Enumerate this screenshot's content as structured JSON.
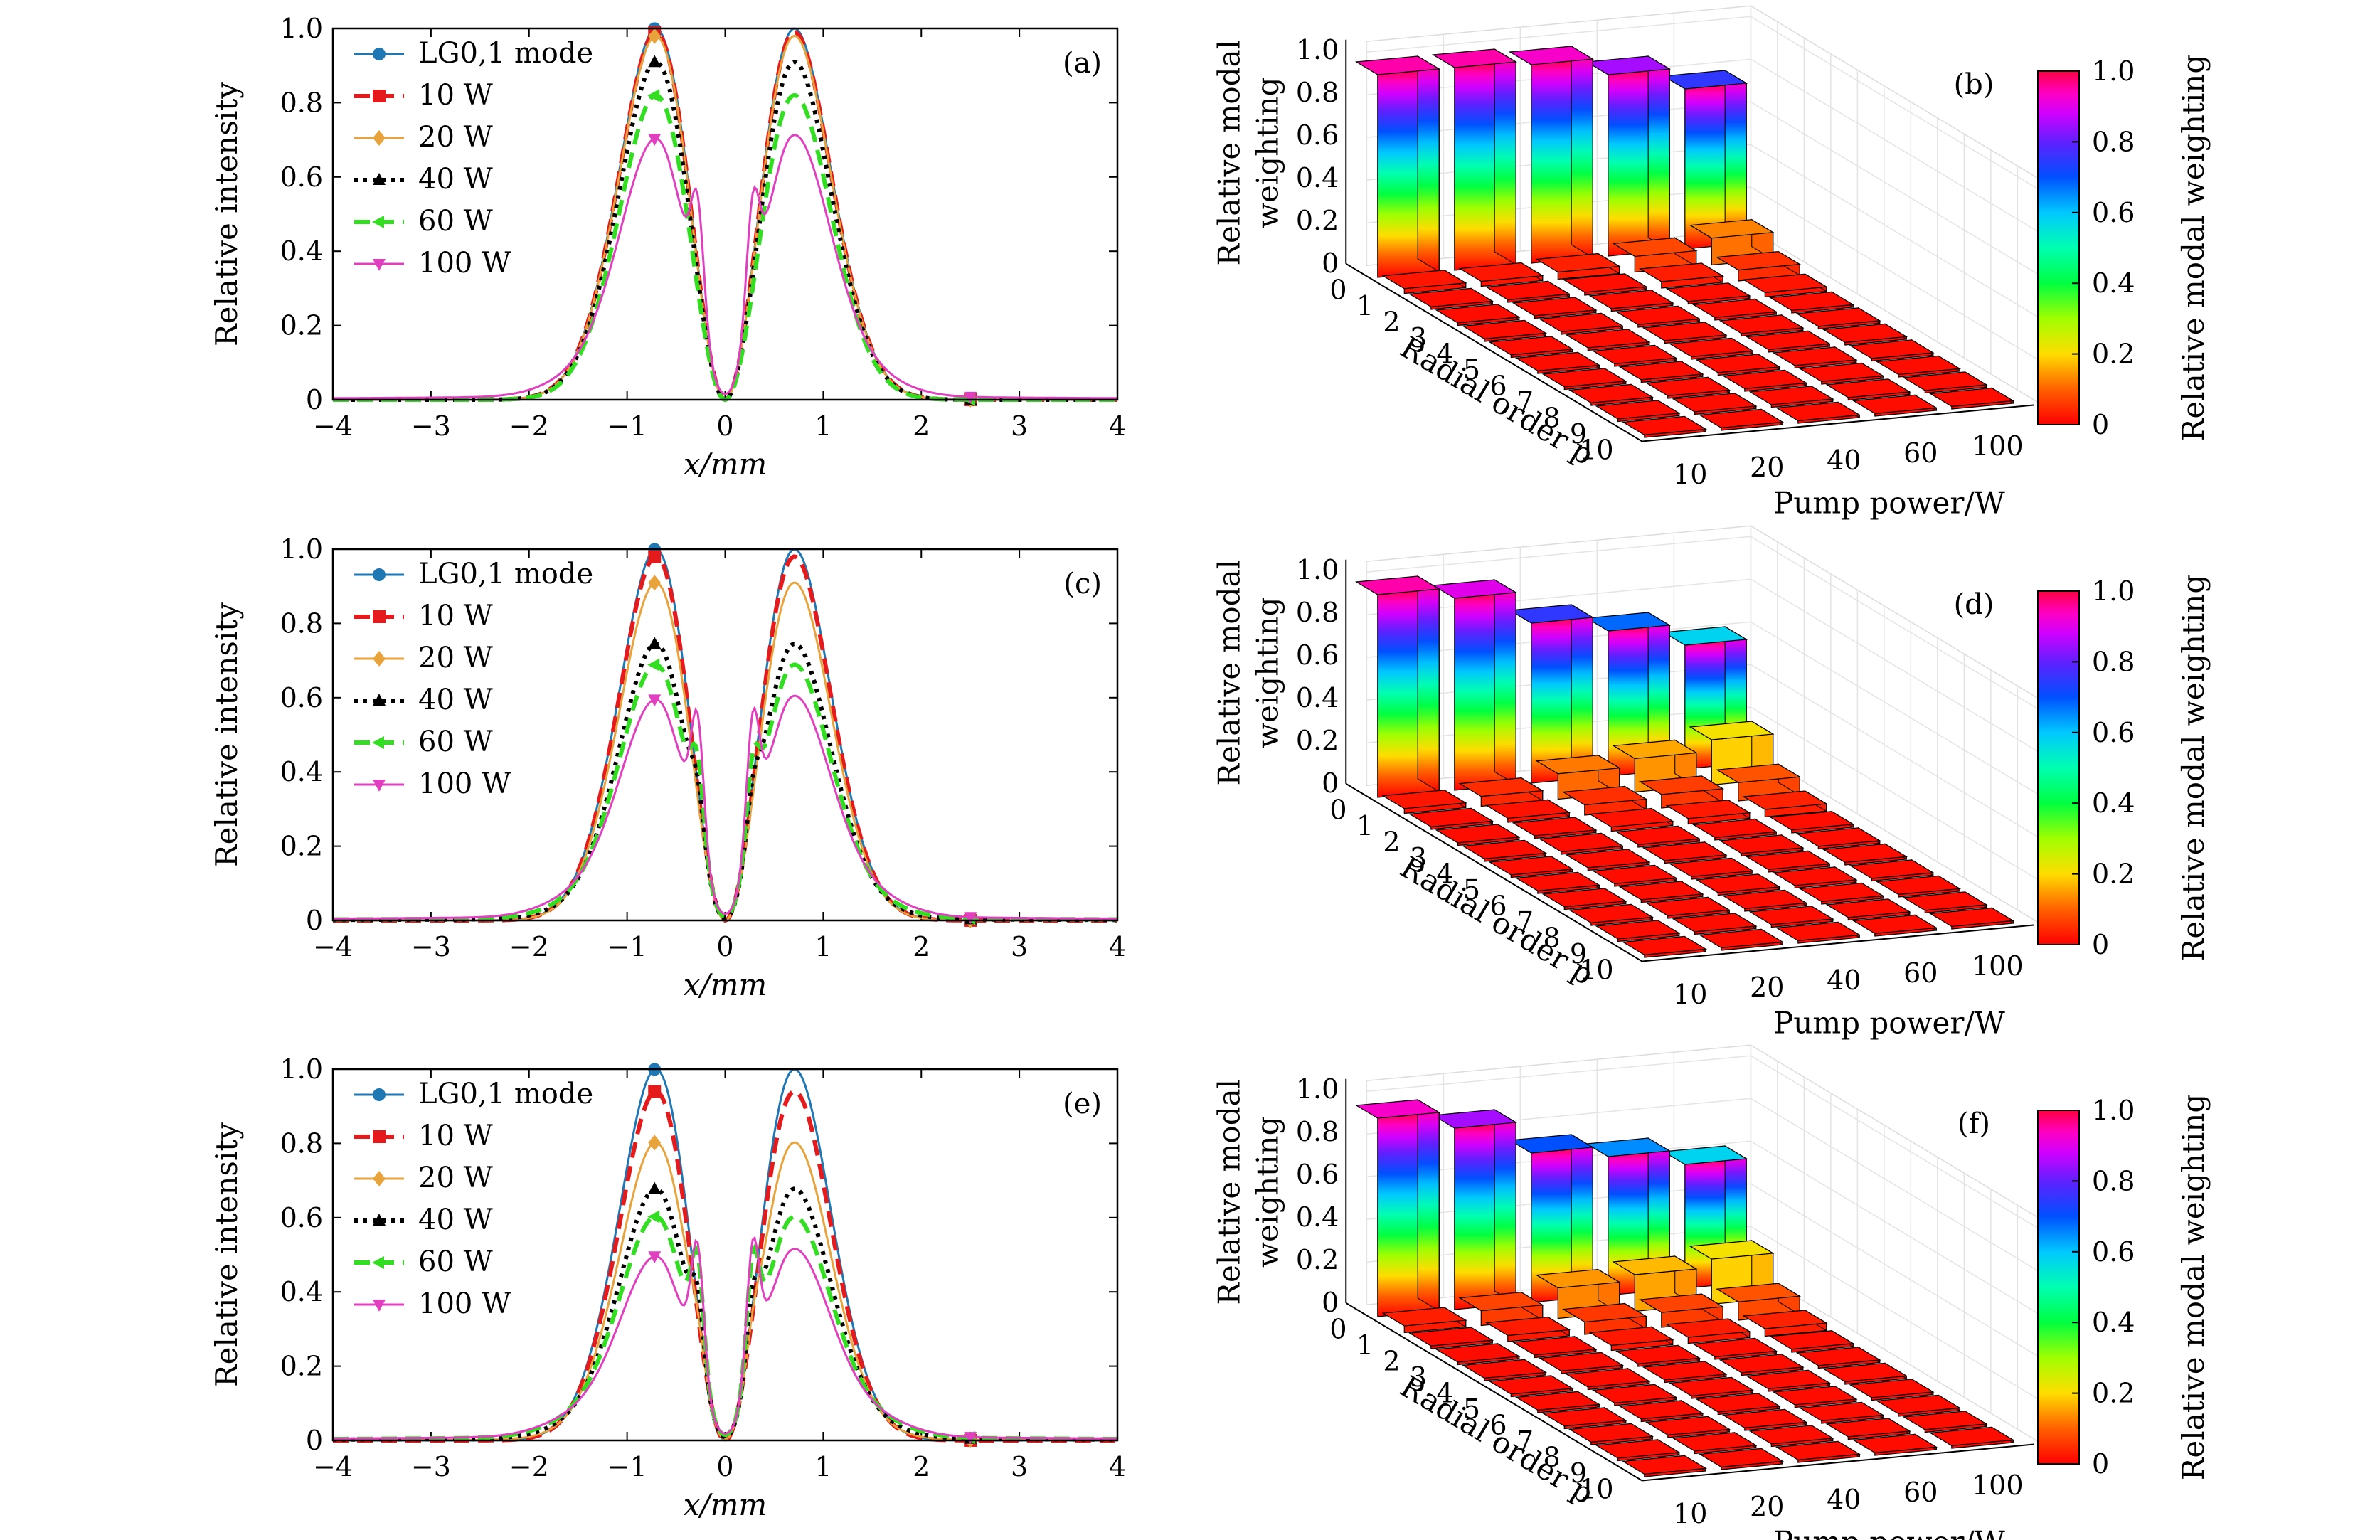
{
  "figure": {
    "panels": [
      "a",
      "c",
      "e"
    ],
    "bar_panels": [
      "b",
      "d",
      "f"
    ]
  },
  "chart_data": [
    {
      "type": "line",
      "panel_label": "(a)",
      "xlabel": "x/mm",
      "ylabel": "Relative intensity",
      "xlim": [
        -4,
        4
      ],
      "ylim": [
        0,
        1
      ],
      "xticks": [
        "−4",
        "−3",
        "−2",
        "−1",
        "0",
        "1",
        "2",
        "3",
        "4"
      ],
      "yticks": [
        "0",
        "0.2",
        "0.4",
        "0.6",
        "0.8",
        "1.0"
      ],
      "series": [
        {
          "name": "LG0,1 mode",
          "color": "#1f77b4",
          "style": "solid",
          "marker": "circle",
          "peaks": [
            1.0,
            1.0
          ],
          "shoulder": 0.0
        },
        {
          "name": "10 W",
          "color": "#e41a1c",
          "style": "dash",
          "marker": "square",
          "peaks": [
            0.99,
            0.99
          ],
          "shoulder": 0.0
        },
        {
          "name": "20 W",
          "color": "#e8a33c",
          "style": "solid",
          "marker": "diamond",
          "peaks": [
            0.98,
            0.98
          ],
          "shoulder": 0.0
        },
        {
          "name": "40 W",
          "color": "#000000",
          "style": "dot",
          "marker": "triangle-up",
          "peaks": [
            0.91,
            0.91
          ],
          "shoulder": 0.0
        },
        {
          "name": "60 W",
          "color": "#33dd22",
          "style": "dash",
          "marker": "triangle-left",
          "peaks": [
            0.82,
            0.82
          ],
          "shoulder": 0.0
        },
        {
          "name": "100 W",
          "color": "#e040c0",
          "style": "solid",
          "marker": "triangle-down",
          "peaks": [
            0.69,
            0.7
          ],
          "shoulder": 0.52
        }
      ]
    },
    {
      "type": "bar3d",
      "panel_label": "(b)",
      "xlabel": "Pump power/W",
      "ylabel": "Radial order p",
      "zlabel": "Relative modal weighting",
      "zticks": [
        "0",
        "0.2",
        "0.4",
        "0.6",
        "0.8",
        "1.0"
      ],
      "categories_power": [
        "10",
        "20",
        "40",
        "60",
        "100"
      ],
      "categories_p": [
        "0",
        "1",
        "2",
        "3",
        "4",
        "5",
        "6",
        "7",
        "8",
        "9",
        "10"
      ],
      "values_p0": [
        0.95,
        0.95,
        0.93,
        0.85,
        0.75
      ],
      "colorbar_label": "Relative modal weighting",
      "colorbar_ticks": [
        "0",
        "0.2",
        "0.4",
        "0.6",
        "0.8",
        "1.0"
      ]
    },
    {
      "type": "line",
      "panel_label": "(c)",
      "xlabel": "x/mm",
      "ylabel": "Relative intensity",
      "xlim": [
        -4,
        4
      ],
      "ylim": [
        0,
        1
      ],
      "xticks": [
        "−4",
        "−3",
        "−2",
        "−1",
        "0",
        "1",
        "2",
        "3",
        "4"
      ],
      "yticks": [
        "0",
        "0.2",
        "0.4",
        "0.6",
        "0.8",
        "1.0"
      ],
      "series": [
        {
          "name": "LG0,1 mode",
          "color": "#1f77b4",
          "style": "solid",
          "marker": "circle",
          "peaks": [
            1.0,
            1.0
          ],
          "shoulder": 0.0
        },
        {
          "name": "10 W",
          "color": "#e41a1c",
          "style": "dash",
          "marker": "square",
          "peaks": [
            0.98,
            0.98
          ],
          "shoulder": 0.0
        },
        {
          "name": "20 W",
          "color": "#e8a33c",
          "style": "solid",
          "marker": "diamond",
          "peaks": [
            0.91,
            0.91
          ],
          "shoulder": 0.0
        },
        {
          "name": "40 W",
          "color": "#000000",
          "style": "dot",
          "marker": "triangle-up",
          "peaks": [
            0.74,
            0.74
          ],
          "shoulder": 0.2
        },
        {
          "name": "60 W",
          "color": "#33dd22",
          "style": "dash",
          "marker": "triangle-left",
          "peaks": [
            0.68,
            0.68
          ],
          "shoulder": 0.35
        },
        {
          "name": "100 W",
          "color": "#e040c0",
          "style": "solid",
          "marker": "triangle-down",
          "peaks": [
            0.58,
            0.59
          ],
          "shoulder": 0.6
        }
      ]
    },
    {
      "type": "bar3d",
      "panel_label": "(d)",
      "xlabel": "Pump power/W",
      "ylabel": "Radial order p",
      "zlabel": "Relative modal weighting",
      "zticks": [
        "0",
        "0.2",
        "0.4",
        "0.6",
        "0.8",
        "1.0"
      ],
      "categories_power": [
        "10",
        "20",
        "40",
        "60",
        "100"
      ],
      "categories_p": [
        "0",
        "1",
        "2",
        "3",
        "4",
        "5",
        "6",
        "7",
        "8",
        "9",
        "10"
      ],
      "values_p0": [
        0.95,
        0.9,
        0.75,
        0.68,
        0.58
      ],
      "colorbar_label": "Relative modal weighting",
      "colorbar_ticks": [
        "0",
        "0.2",
        "0.4",
        "0.6",
        "0.8",
        "1.0"
      ]
    },
    {
      "type": "line",
      "panel_label": "(e)",
      "xlabel": "x/mm",
      "ylabel": "Relative intensity",
      "xlim": [
        -4,
        4
      ],
      "ylim": [
        0,
        1
      ],
      "xticks": [
        "−4",
        "−3",
        "−2",
        "−1",
        "0",
        "1",
        "2",
        "3",
        "4"
      ],
      "yticks": [
        "0",
        "0.2",
        "0.4",
        "0.6",
        "0.8",
        "1.0"
      ],
      "series": [
        {
          "name": "LG0,1 mode",
          "color": "#1f77b4",
          "style": "solid",
          "marker": "circle",
          "peaks": [
            1.0,
            1.0
          ],
          "shoulder": 0.0
        },
        {
          "name": "10 W",
          "color": "#e41a1c",
          "style": "dash",
          "marker": "square",
          "peaks": [
            0.94,
            0.94
          ],
          "shoulder": 0.0
        },
        {
          "name": "20 W",
          "color": "#e8a33c",
          "style": "solid",
          "marker": "diamond",
          "peaks": [
            0.8,
            0.8
          ],
          "shoulder": 0.1
        },
        {
          "name": "40 W",
          "color": "#000000",
          "style": "dot",
          "marker": "triangle-up",
          "peaks": [
            0.67,
            0.67
          ],
          "shoulder": 0.3
        },
        {
          "name": "60 W",
          "color": "#33dd22",
          "style": "dash",
          "marker": "triangle-left",
          "peaks": [
            0.59,
            0.59
          ],
          "shoulder": 0.5
        },
        {
          "name": "100 W",
          "color": "#e040c0",
          "style": "solid",
          "marker": "triangle-down",
          "peaks": [
            0.48,
            0.5
          ],
          "shoulder": 0.62
        }
      ]
    },
    {
      "type": "bar3d",
      "panel_label": "(f)",
      "xlabel": "Pump power/W",
      "ylabel": "Radial order p",
      "zlabel": "Relative modal weighting",
      "zticks": [
        "0",
        "0.2",
        "0.4",
        "0.6",
        "0.8",
        "1.0"
      ],
      "categories_power": [
        "10",
        "20",
        "40",
        "60",
        "100"
      ],
      "categories_p": [
        "0",
        "1",
        "2",
        "3",
        "4",
        "5",
        "6",
        "7",
        "8",
        "9",
        "10"
      ],
      "values_p0": [
        0.93,
        0.85,
        0.7,
        0.65,
        0.58
      ],
      "colorbar_label": "Relative modal weighting",
      "colorbar_ticks": [
        "0",
        "0.2",
        "0.4",
        "0.6",
        "0.8",
        "1.0"
      ]
    }
  ]
}
